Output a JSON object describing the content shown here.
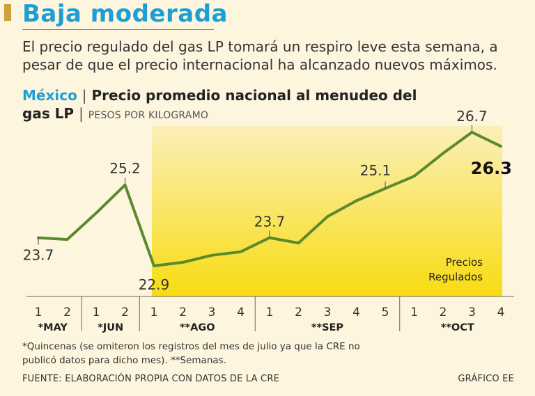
{
  "headline": "Baja moderada",
  "deck": "El precio regulado del gas LP tomará un respiro leve esta semana, a pesar de que el precio internacional ha alcanzado nuevos máximos.",
  "chart_title": {
    "country": "México",
    "separator": "|",
    "text": "Precio promedio nacional al menudeo del gas LP",
    "units_separator": "|",
    "units": "PESOS POR KILOGRAMO"
  },
  "chart_data": {
    "type": "line",
    "title": "Precio promedio nacional al menudeo del gas LP",
    "ylabel": "Pesos por kilogramo",
    "ylim": [
      22.0,
      27.0
    ],
    "series": [
      {
        "name": "Precio promedio nacional",
        "color": "#5a8a2c",
        "values": [
          23.7,
          23.65,
          24.4,
          25.2,
          22.9,
          23.0,
          23.2,
          23.3,
          23.7,
          23.55,
          24.3,
          24.75,
          25.1,
          25.45,
          26.1,
          26.7,
          26.3
        ]
      }
    ],
    "x_ticks": [
      "1",
      "2",
      "1",
      "2",
      "1",
      "2",
      "3",
      "4",
      "1",
      "2",
      "3",
      "4",
      "5",
      "1",
      "2",
      "3",
      "4"
    ],
    "groups": [
      {
        "label": "*MAY",
        "count": 2
      },
      {
        "label": "*JUN",
        "count": 2
      },
      {
        "label": "**AGO",
        "count": 4
      },
      {
        "label": "**SEP",
        "count": 5
      },
      {
        "label": "**OCT",
        "count": 4
      }
    ],
    "data_labels": [
      {
        "index": 0,
        "text": "23.7"
      },
      {
        "index": 3,
        "text": "25.2"
      },
      {
        "index": 4,
        "text": "22.9"
      },
      {
        "index": 8,
        "text": "23.7"
      },
      {
        "index": 12,
        "text": "25.1"
      },
      {
        "index": 15,
        "text": "26.7"
      },
      {
        "index": 16,
        "text": "26.3"
      }
    ],
    "highlight": {
      "from_index": 4,
      "to_index": 16,
      "label_line1": "Precios",
      "label_line2": "Regulados"
    }
  },
  "footnote": "*Quincenas (se omiteron los registros del mes de julio ya que la CRE no publicó datos para dicho mes). **Semanas.",
  "source": "FUENTE: ELABORACIÓN PROPIA CON DATOS DE LA CRE",
  "credit": "GRÁFICO EE",
  "colors": {
    "accent_blue": "#1d9fd6",
    "line_green": "#5a8a2c",
    "highlight_top": "#fbefb8",
    "highlight_bottom": "#f8dc12",
    "background": "#fdf5dd"
  }
}
